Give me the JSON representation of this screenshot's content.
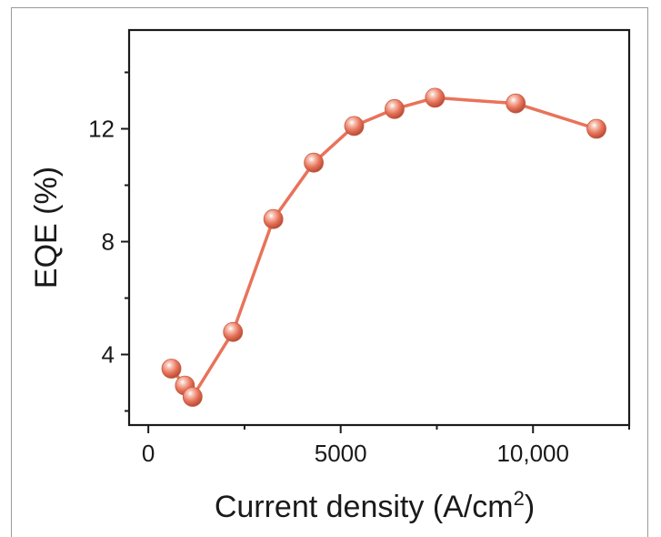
{
  "chart_data": {
    "type": "line",
    "title": "",
    "xlabel_main": "Current density (A/cm",
    "xlabel_sup": "2",
    "xlabel_tail": ")",
    "ylabel": "EQE (%)",
    "xlim": [
      -500,
      12500
    ],
    "ylim": [
      1.5,
      15.5
    ],
    "x_ticks": [
      0,
      5000,
      10000
    ],
    "x_tick_labels": [
      "0",
      "5000",
      "10,000"
    ],
    "y_ticks": [
      4,
      8,
      12
    ],
    "y_tick_labels": [
      "4",
      "8",
      "12"
    ],
    "grid": false,
    "series": [
      {
        "color": "#e8735a",
        "x": [
          600,
          950,
          1150,
          2200,
          3250,
          4300,
          5350,
          6400,
          7450,
          9550,
          11650
        ],
        "y": [
          3.5,
          2.9,
          2.5,
          4.8,
          8.8,
          10.8,
          12.1,
          12.7,
          13.1,
          12.9,
          12.0
        ]
      }
    ]
  }
}
